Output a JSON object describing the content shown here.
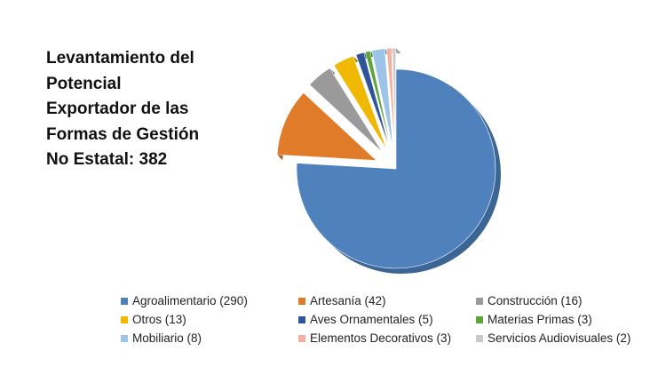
{
  "chart_data": {
    "type": "pie",
    "title": "Levantamiento del\nPotencial\nExportador de las\nFormas de Gestión\nNo Estatal: 382",
    "total": 382,
    "slices": [
      {
        "label": "Agroalimentario (290)",
        "value": 290,
        "color": "#4f81bd",
        "side": "#3a6594"
      },
      {
        "label": "Artesanía (42)",
        "value": 42,
        "color": "#e07b2a",
        "side": "#a95a1c"
      },
      {
        "label": "Construcción (16)",
        "value": 16,
        "color": "#9a9a9a",
        "side": "#6e6e6e"
      },
      {
        "label": "Otros (13)",
        "value": 13,
        "color": "#f0b800",
        "side": "#b08600"
      },
      {
        "label": "Aves Ornamentales (5)",
        "value": 5,
        "color": "#2e5597",
        "side": "#1f3c6c"
      },
      {
        "label": "Materias Primas (3)",
        "value": 3,
        "color": "#5fa43b",
        "side": "#437628"
      },
      {
        "label": "Mobiliario (8)",
        "value": 8,
        "color": "#9dc3e6",
        "side": "#6f95b8"
      },
      {
        "label": "Elementos Decorativos (3)",
        "value": 3,
        "color": "#f4b0a0",
        "side": "#c27f70"
      },
      {
        "label": "Servicios Audiovisuales (2)",
        "value": 2,
        "color": "#c9c9c9",
        "side": "#9a9a9a"
      }
    ],
    "legend_order": [
      0,
      1,
      2,
      3,
      4,
      5,
      6,
      7,
      8
    ],
    "legend_position": "bottom"
  }
}
